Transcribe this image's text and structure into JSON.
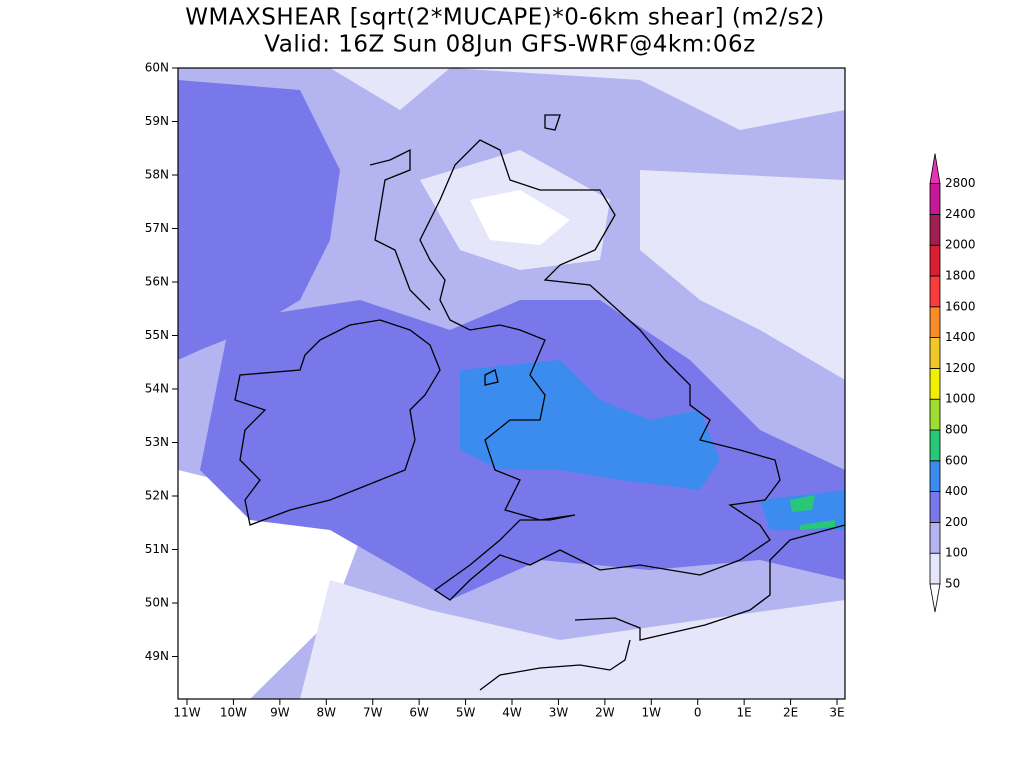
{
  "title": [
    "WMAXSHEAR [sqrt(2*MUCAPE)*0-6km shear] (m2/s2)",
    "Valid: 16Z Sun 08Jun GFS-WRF@4km:06z"
  ],
  "lat_labels": [
    "60N",
    "59N",
    "58N",
    "57N",
    "56N",
    "55N",
    "54N",
    "53N",
    "52N",
    "51N",
    "50N",
    "49N"
  ],
  "lon_labels": [
    "11W",
    "10W",
    "9W",
    "8W",
    "7W",
    "6W",
    "5W",
    "4W",
    "3W",
    "2W",
    "1W",
    "0",
    "1E",
    "2E",
    "3E"
  ],
  "colorbar": {
    "levels": [
      50,
      100,
      200,
      400,
      600,
      800,
      1000,
      1200,
      1400,
      1600,
      1800,
      2000,
      2400,
      2800
    ],
    "colors": [
      "#e6e6fa",
      "#b4b4f0",
      "#7878eb",
      "#3c8cf0",
      "#28c878",
      "#a0dc32",
      "#f0f000",
      "#f0c828",
      "#fa8c28",
      "#fa3c3c",
      "#dc1e32",
      "#a01e50",
      "#c8189a"
    ],
    "under": "#ffffff",
    "over": "#e632b4"
  }
}
